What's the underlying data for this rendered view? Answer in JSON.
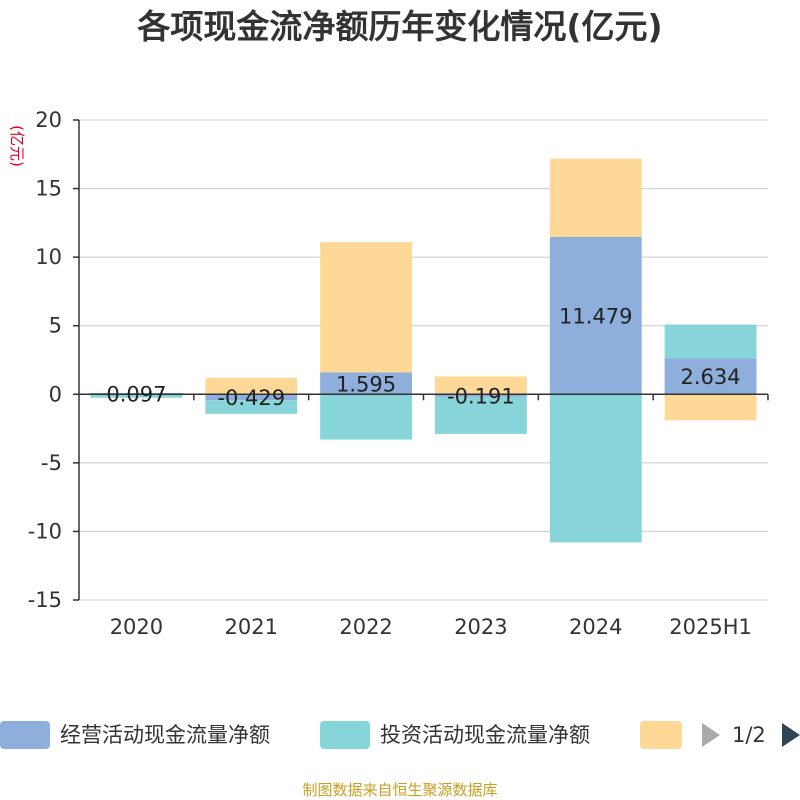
{
  "chart_data": {
    "type": "bar",
    "stacked": true,
    "title": "各项现金流净额历年变化情况(亿元)",
    "ylabel": "(亿元)",
    "categories": [
      "2020",
      "2021",
      "2022",
      "2023",
      "2024",
      "2025H1"
    ],
    "ylim": [
      -15,
      20
    ],
    "yticks": [
      20,
      15,
      10,
      5,
      0,
      -5,
      -10,
      -15
    ],
    "grid": true,
    "series": [
      {
        "name": "经营活动现金流量净额",
        "color": "#8eaedb",
        "values": [
          0.097,
          -0.429,
          1.595,
          -0.191,
          11.479,
          2.634
        ],
        "labels": [
          "0.097",
          "-0.429",
          "1.595",
          "-0.191",
          "11.479",
          "2.634"
        ]
      },
      {
        "name": "投资活动现金流量净额",
        "color": "#88d5d9",
        "values": [
          -0.25,
          -1.0,
          -3.3,
          -2.7,
          -10.8,
          2.45
        ]
      },
      {
        "name": "",
        "color": "#fed897",
        "values": [
          0.0,
          1.2,
          9.5,
          1.3,
          5.7,
          -1.9
        ]
      }
    ],
    "legend_position": "bottom",
    "legend_page": "1/2",
    "source": "制图数据来自恒生聚源数据库"
  }
}
